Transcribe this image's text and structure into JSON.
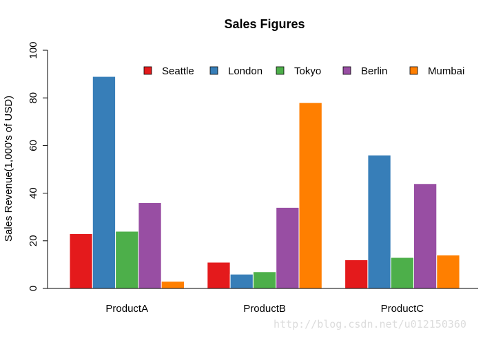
{
  "chart_data": {
    "type": "bar",
    "title": "Sales Figures",
    "xlabel": "",
    "ylabel": "Sales Revenue(1,000's of USD)",
    "ylim": [
      0,
      100
    ],
    "yticks": [
      "0",
      "20",
      "40",
      "60",
      "80",
      "100"
    ],
    "grid": false,
    "legend_position": "top-right",
    "categories": [
      "ProductA",
      "ProductB",
      "ProductC"
    ],
    "series": [
      {
        "name": "Seattle",
        "color": "#E41A1C",
        "values": [
          23,
          11,
          12
        ]
      },
      {
        "name": "London",
        "color": "#377EB8",
        "values": [
          89,
          6,
          56
        ]
      },
      {
        "name": "Tokyo",
        "color": "#4DAF4A",
        "values": [
          24,
          7,
          13
        ]
      },
      {
        "name": "Berlin",
        "color": "#984EA3",
        "values": [
          36,
          34,
          44
        ]
      },
      {
        "name": "Mumbai",
        "color": "#FF7F00",
        "values": [
          3,
          78,
          14
        ]
      }
    ]
  },
  "watermark": "http://blog.csdn.net/u012150360"
}
